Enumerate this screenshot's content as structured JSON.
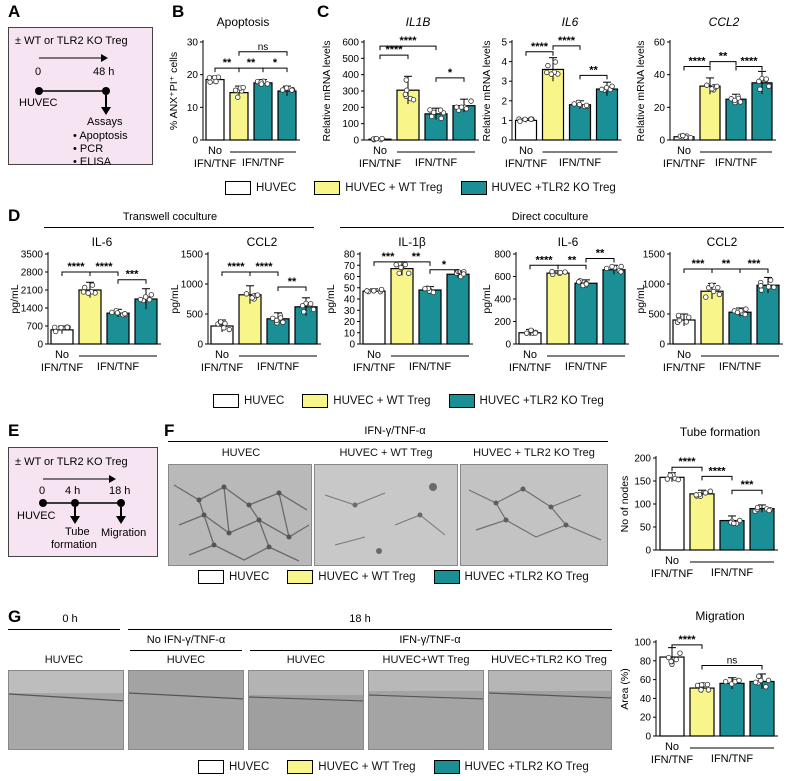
{
  "panels": {
    "A": "A",
    "B": "B",
    "C": "C",
    "D": "D",
    "E": "E",
    "F": "F",
    "G": "G"
  },
  "colors": {
    "huvec": "#ffffff",
    "wt": "#f8f58a",
    "ko": "#1a8f95"
  },
  "schemeA": {
    "title": "± WT or TLR2 KO Treg",
    "t0": "0",
    "t48": "48 h",
    "huvec": "HUVEC",
    "assays": "Assays",
    "items": [
      "Apoptosis",
      "PCR",
      "ELISA"
    ]
  },
  "schemeE": {
    "title": "± WT or TLR2 KO Treg",
    "t0": "0",
    "t4": "4 h",
    "t18": "18 h",
    "huvec": "HUVEC",
    "tube1": "Tube",
    "tube2": "formation",
    "migration": "Migration"
  },
  "xlabels": {
    "no1": "No",
    "no2": "IFN/TNF",
    "ifn": "IFN/TNF"
  },
  "legend": {
    "huvec": "HUVEC",
    "wt": "HUVEC + WT Treg",
    "ko": "HUVEC +TLR2 KO Treg"
  },
  "groupD": {
    "transwell": "Transwell coculture",
    "direct": "Direct coculture"
  },
  "groupF": {
    "cond": "IFN-γ/TNF-α",
    "c1": "HUVEC",
    "c2": "HUVEC + WT Treg",
    "c3": "HUVEC + TLR2 KO Treg"
  },
  "groupG": {
    "t0": "0 h",
    "t18": "18 h",
    "noifn": "No IFN-γ/TNF-α",
    "ifn": "IFN-γ/TNF-α",
    "c1": "HUVEC",
    "c2": "HUVEC",
    "c3": "HUVEC",
    "c4": "HUVEC+WT Treg",
    "c5": "HUVEC+TLR2 KO Treg"
  },
  "chart_data": [
    {
      "id": "B",
      "type": "bar",
      "title": "Apoptosis",
      "title_italic": false,
      "ylabel": "% ANX⁺PI⁺ cells",
      "ylim": [
        0,
        30
      ],
      "yticks": [
        0,
        10,
        20,
        30
      ],
      "values": [
        18.5,
        14.5,
        17.5,
        15
      ],
      "errors": [
        1,
        2,
        1,
        1.5
      ],
      "brackets": [
        {
          "a": 0,
          "b": 1,
          "t": "**",
          "y": 22
        },
        {
          "a": 1,
          "b": 2,
          "t": "**",
          "y": 22
        },
        {
          "a": 2,
          "b": 3,
          "t": "*",
          "y": 22
        },
        {
          "a": 1,
          "b": 3,
          "t": "ns",
          "y": 27
        }
      ]
    },
    {
      "id": "C1",
      "type": "bar",
      "title": "IL1B",
      "title_italic": true,
      "ylabel": "Relative mRNA levels",
      "ylim": [
        0,
        600
      ],
      "yticks": [
        0,
        100,
        200,
        300,
        400,
        500,
        600
      ],
      "values": [
        5,
        305,
        160,
        210
      ],
      "errors": [
        5,
        85,
        35,
        40
      ],
      "brackets": [
        {
          "a": 0,
          "b": 1,
          "t": "****",
          "y": 520
        },
        {
          "a": 0,
          "b": 2,
          "t": "****",
          "y": 575
        },
        {
          "a": 2,
          "b": 3,
          "t": "*",
          "y": 380
        }
      ]
    },
    {
      "id": "C2",
      "type": "bar",
      "title": "IL6",
      "title_italic": true,
      "ylabel": "Relative mRNA levels",
      "ylim": [
        0,
        5
      ],
      "yticks": [
        0,
        1,
        2,
        3,
        4,
        5
      ],
      "values": [
        1,
        3.6,
        1.8,
        2.6
      ],
      "errors": [
        0.1,
        0.6,
        0.2,
        0.35
      ],
      "brackets": [
        {
          "a": 0,
          "b": 1,
          "t": "****",
          "y": 4.5
        },
        {
          "a": 1,
          "b": 2,
          "t": "****",
          "y": 4.8
        },
        {
          "a": 2,
          "b": 3,
          "t": "**",
          "y": 3.3
        }
      ]
    },
    {
      "id": "C3",
      "type": "bar",
      "title": "CCL2",
      "title_italic": true,
      "ylabel": "Relative mRNA levels",
      "ylim": [
        0,
        60
      ],
      "yticks": [
        0,
        20,
        40,
        60
      ],
      "values": [
        2,
        33,
        25,
        35
      ],
      "errors": [
        1,
        5,
        3,
        7
      ],
      "brackets": [
        {
          "a": 0,
          "b": 1,
          "t": "****",
          "y": 45
        },
        {
          "a": 1,
          "b": 2,
          "t": "**",
          "y": 48
        },
        {
          "a": 2,
          "b": 3,
          "t": "****",
          "y": 45
        }
      ]
    },
    {
      "id": "D1",
      "type": "bar",
      "title": "IL-6",
      "title_italic": false,
      "ylabel": "pg/mL",
      "ylim": [
        0,
        3500
      ],
      "yticks": [
        0,
        700,
        1400,
        2100,
        2800,
        3500
      ],
      "values": [
        550,
        2100,
        1200,
        1750
      ],
      "errors": [
        150,
        300,
        150,
        400
      ],
      "brackets": [
        {
          "a": 0,
          "b": 1,
          "t": "****",
          "y": 2800
        },
        {
          "a": 1,
          "b": 2,
          "t": "****",
          "y": 2800
        },
        {
          "a": 2,
          "b": 3,
          "t": "***",
          "y": 2500
        }
      ]
    },
    {
      "id": "D2",
      "type": "bar",
      "title": "CCL2",
      "title_italic": false,
      "ylabel": "pg/mL",
      "ylim": [
        0,
        1500
      ],
      "yticks": [
        0,
        500,
        1000,
        1500
      ],
      "values": [
        300,
        820,
        420,
        620
      ],
      "errors": [
        100,
        150,
        100,
        150
      ],
      "brackets": [
        {
          "a": 0,
          "b": 1,
          "t": "****",
          "y": 1200
        },
        {
          "a": 1,
          "b": 2,
          "t": "****",
          "y": 1200
        },
        {
          "a": 2,
          "b": 3,
          "t": "**",
          "y": 950
        }
      ]
    },
    {
      "id": "D3",
      "type": "bar",
      "title": "IL-1β",
      "title_italic": false,
      "ylabel": "pg/mL",
      "ylim": [
        0,
        80
      ],
      "yticks": [
        0,
        10,
        20,
        30,
        40,
        50,
        60,
        70,
        80
      ],
      "values": [
        47,
        67,
        48,
        62
      ],
      "errors": [
        2,
        6,
        3,
        3
      ],
      "brackets": [
        {
          "a": 0,
          "b": 1,
          "t": "***",
          "y": 73
        },
        {
          "a": 1,
          "b": 2,
          "t": "**",
          "y": 73
        },
        {
          "a": 2,
          "b": 3,
          "t": "*",
          "y": 66
        }
      ]
    },
    {
      "id": "D4",
      "type": "bar",
      "title": "IL-6",
      "title_italic": false,
      "ylabel": "pg/mL",
      "ylim": [
        0,
        800
      ],
      "yticks": [
        0,
        200,
        400,
        600,
        800
      ],
      "values": [
        100,
        630,
        540,
        660
      ],
      "errors": [
        30,
        20,
        30,
        40
      ],
      "brackets": [
        {
          "a": 0,
          "b": 1,
          "t": "****",
          "y": 700
        },
        {
          "a": 1,
          "b": 2,
          "t": "**",
          "y": 700
        },
        {
          "a": 2,
          "b": 3,
          "t": "**",
          "y": 760
        }
      ]
    },
    {
      "id": "D5",
      "type": "bar",
      "title": "CCL2",
      "title_italic": false,
      "ylabel": "pg/mL",
      "ylim": [
        0,
        1500
      ],
      "yticks": [
        0,
        500,
        1000,
        1500
      ],
      "values": [
        400,
        880,
        530,
        980
      ],
      "errors": [
        100,
        130,
        70,
        130
      ],
      "brackets": [
        {
          "a": 0,
          "b": 1,
          "t": "***",
          "y": 1250
        },
        {
          "a": 1,
          "b": 2,
          "t": "**",
          "y": 1250
        },
        {
          "a": 2,
          "b": 3,
          "t": "***",
          "y": 1250
        }
      ]
    },
    {
      "id": "F",
      "type": "bar",
      "title": "Tube formation",
      "title_italic": false,
      "ylabel": "No of nodes",
      "ylim": [
        0,
        200
      ],
      "yticks": [
        0,
        50,
        100,
        150,
        200
      ],
      "values": [
        158,
        122,
        64,
        90
      ],
      "errors": [
        10,
        8,
        10,
        8
      ],
      "brackets": [
        {
          "a": 0,
          "b": 1,
          "t": "****",
          "y": 180
        },
        {
          "a": 1,
          "b": 2,
          "t": "****",
          "y": 160
        },
        {
          "a": 2,
          "b": 3,
          "t": "***",
          "y": 130
        }
      ]
    },
    {
      "id": "G",
      "type": "bar",
      "title": "Migration",
      "title_italic": false,
      "ylabel": "Area (%)",
      "ylim": [
        0,
        100
      ],
      "yticks": [
        0,
        20,
        40,
        60,
        80,
        100
      ],
      "values": [
        84,
        51,
        56,
        58
      ],
      "errors": [
        10,
        5,
        6,
        8
      ],
      "brackets": [
        {
          "a": 0,
          "b": 1,
          "t": "****",
          "y": 97
        },
        {
          "a": 1,
          "b": 3,
          "t": "ns",
          "y": 75
        }
      ]
    }
  ]
}
